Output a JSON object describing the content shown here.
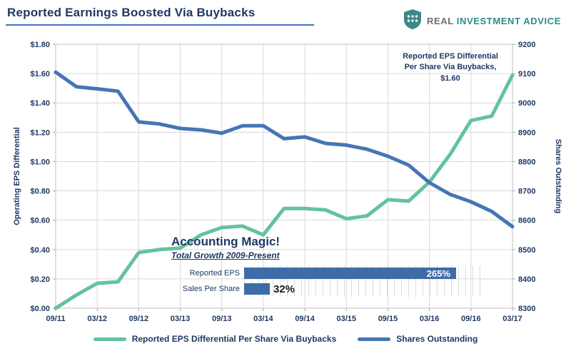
{
  "header": {
    "title": "Reported Earnings Boosted Via Buybacks"
  },
  "brand": {
    "name_primary": "REAL",
    "name_secondary": "INVESTMENT ADVICE",
    "teal": "#2E8C8C",
    "gray": "#6d6e71"
  },
  "chart_data": {
    "type": "line",
    "title": "Reported Earnings Boosted Via Buybacks",
    "grid": true,
    "legend_position": "bottom",
    "left_axis": {
      "title": "Operating EPS Differential",
      "min": 0,
      "max": 1.8,
      "ticks": [
        "$0.00",
        "$0.20",
        "$0.40",
        "$0.60",
        "$0.80",
        "$1.00",
        "$1.20",
        "$1.40",
        "$1.60",
        "$1.80"
      ]
    },
    "right_axis": {
      "title": "Shares Outstanding",
      "min": 8300,
      "max": 9200,
      "ticks": [
        "8300",
        "8400",
        "8500",
        "8600",
        "8700",
        "8800",
        "8900",
        "9000",
        "9100",
        "9200"
      ]
    },
    "x_tick_labels": [
      "09/11",
      "03/12",
      "09/12",
      "03/13",
      "09/13",
      "03/14",
      "09/14",
      "03/15",
      "09/15",
      "03/16",
      "09/16",
      "03/17"
    ],
    "points_per_tick": 2,
    "series": [
      {
        "name": "Reported EPS Differential Per Share Via Buybacks",
        "axis": "left",
        "color": "#63C29F",
        "values": [
          0.0,
          0.09,
          0.17,
          0.18,
          0.38,
          0.4,
          0.41,
          0.5,
          0.55,
          0.56,
          0.5,
          0.68,
          0.68,
          0.67,
          0.61,
          0.63,
          0.74,
          0.73,
          0.86,
          1.05,
          1.28,
          1.31,
          1.59
        ]
      },
      {
        "name": "Shares Outstanding",
        "axis": "right",
        "color": "#4575B4",
        "values": [
          9105,
          9055,
          9048,
          9040,
          8935,
          8928,
          8913,
          8908,
          8897,
          8922,
          8922,
          8878,
          8884,
          8862,
          8856,
          8842,
          8818,
          8788,
          8728,
          8688,
          8663,
          8630,
          8578
        ]
      }
    ],
    "annotation": "Reported EPS Differential\nPer Share Via Buybacks,\n$1.60",
    "inset": {
      "title": "Accounting Magic!",
      "subtitle": "Total Growth 2009-Present",
      "max": 300,
      "bars": [
        {
          "label": "Reported EPS",
          "value": 265,
          "value_label": "265%"
        },
        {
          "label": "Sales Per Share",
          "value": 32,
          "value_label": "32%"
        }
      ]
    }
  }
}
